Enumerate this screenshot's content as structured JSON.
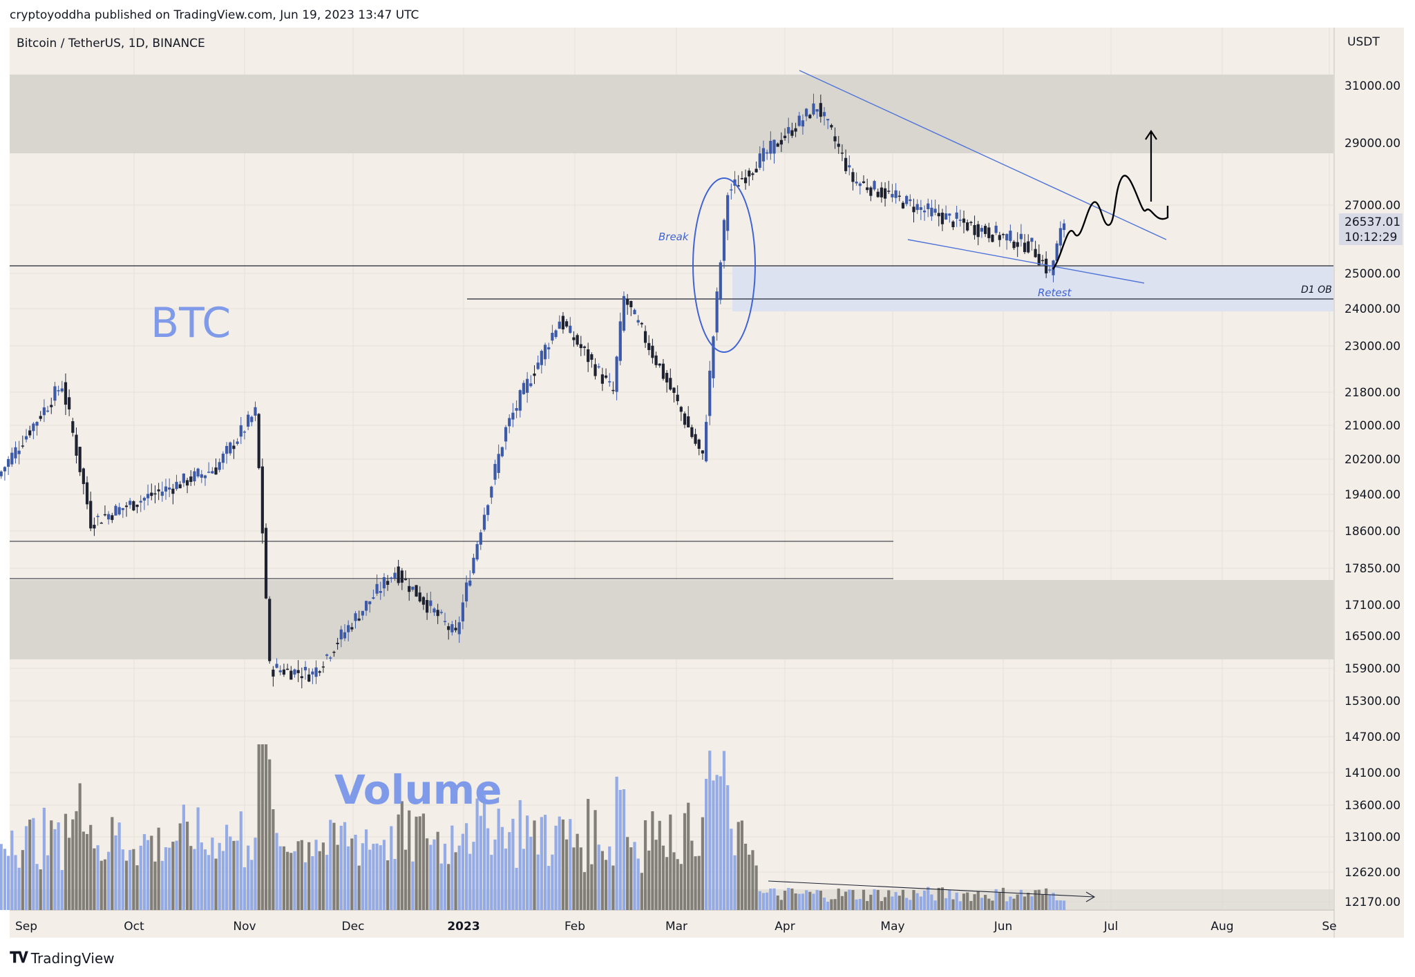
{
  "header": {
    "published_by": "cryptoyoddha published on TradingView.com, Jun 19, 2023 13:47 UTC"
  },
  "chart_title": "Bitcoin / TetherUS, 1D, BINANCE",
  "footer": {
    "brand": "TradingView"
  },
  "colors": {
    "background": "#f3efe8",
    "zone_gray": "#d9d6cf",
    "ob_blue": "#dce2f0",
    "up_candle": "#3d5aa8",
    "down_candle": "#1e2230",
    "vol_blue": "#8fa6e6",
    "vol_gray": "#7b7873",
    "annotation_blue": "#5b78d4",
    "line_blue": "#4f73d9"
  },
  "chart_data": {
    "type": "candlestick",
    "currency": "USDT",
    "y_ticks": [
      "31000.00",
      "29000.00",
      "27000.00",
      "25000.00",
      "24000.00",
      "23000.00",
      "21800.00",
      "21000.00",
      "20200.00",
      "19400.00",
      "18600.00",
      "17850.00",
      "17100.00",
      "16500.00",
      "15900.00",
      "15300.00",
      "14700.00",
      "14100.00",
      "13600.00",
      "13100.00",
      "12620.00",
      "12170.00"
    ],
    "x_ticks": [
      "Sep",
      "Oct",
      "Nov",
      "Dec",
      "2023",
      "Feb",
      "Mar",
      "Apr",
      "May",
      "Jun",
      "Jul",
      "Aug",
      "Se"
    ],
    "last_price": "26537.01",
    "countdown": "10:12:29",
    "zones": [
      {
        "type": "supply",
        "from": 28800,
        "to": 31300
      },
      {
        "type": "order_block",
        "label": "D1 OB",
        "from": 24000,
        "to": 25100
      },
      {
        "type": "demand",
        "from": 16100,
        "to": 17600
      }
    ],
    "horizontal_levels": [
      25100,
      24300,
      18400,
      17700
    ],
    "annotations": {
      "asset_label": "BTC",
      "volume_label": "Volume",
      "break_label": "Break",
      "retest_label": "Retest",
      "ob_label": "D1 OB"
    },
    "price_path_approx": [
      {
        "date": "2022-08-25",
        "close": 19800
      },
      {
        "date": "2022-09-12",
        "close": 22000
      },
      {
        "date": "2022-09-20",
        "close": 18800
      },
      {
        "date": "2022-10-25",
        "close": 20000
      },
      {
        "date": "2022-11-05",
        "close": 21300
      },
      {
        "date": "2022-11-09",
        "close": 15900
      },
      {
        "date": "2022-11-21",
        "close": 15800
      },
      {
        "date": "2022-12-14",
        "close": 17800
      },
      {
        "date": "2022-12-31",
        "close": 16500
      },
      {
        "date": "2023-01-14",
        "close": 20900
      },
      {
        "date": "2023-01-29",
        "close": 23700
      },
      {
        "date": "2023-02-13",
        "close": 21800
      },
      {
        "date": "2023-02-16",
        "close": 24300
      },
      {
        "date": "2023-03-10",
        "close": 20200
      },
      {
        "date": "2023-03-17",
        "close": 27400
      },
      {
        "date": "2023-04-11",
        "close": 30300
      },
      {
        "date": "2023-04-21",
        "close": 27800
      },
      {
        "date": "2023-05-12",
        "close": 26800
      },
      {
        "date": "2023-06-10",
        "close": 25800
      },
      {
        "date": "2023-06-15",
        "close": 25000
      },
      {
        "date": "2023-06-19",
        "close": 26537
      }
    ]
  }
}
